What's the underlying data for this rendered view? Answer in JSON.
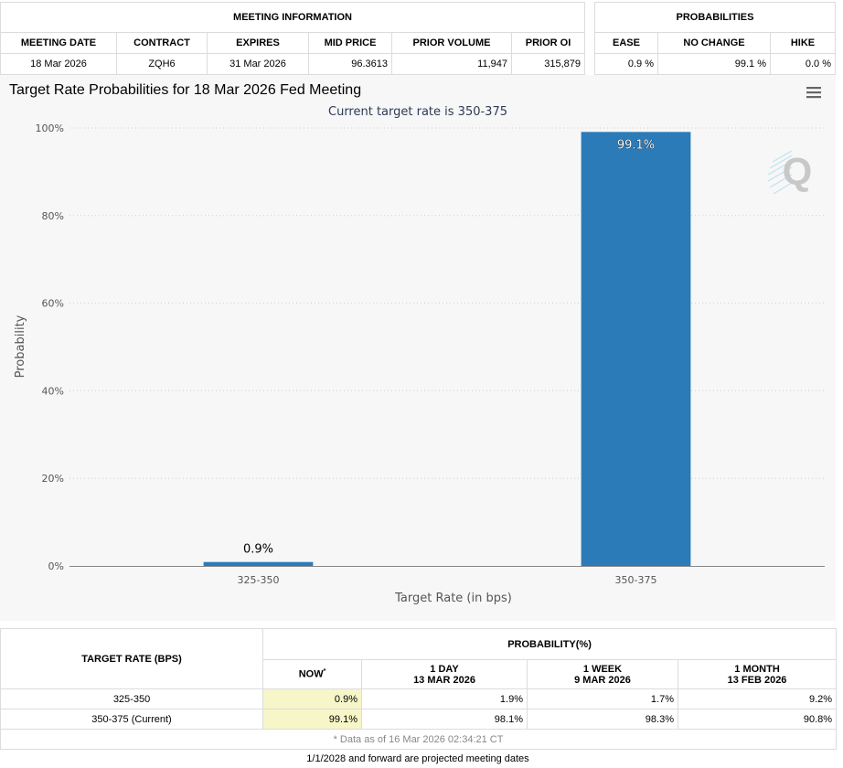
{
  "meeting_info": {
    "title": "MEETING INFORMATION",
    "columns": [
      "MEETING DATE",
      "CONTRACT",
      "EXPIRES",
      "MID PRICE",
      "PRIOR VOLUME",
      "PRIOR OI"
    ],
    "row": [
      "18 Mar 2026",
      "ZQH6",
      "31 Mar 2026",
      "96.3613",
      "11,947",
      "315,879"
    ]
  },
  "probabilities": {
    "title": "PROBABILITIES",
    "columns": [
      "EASE",
      "NO CHANGE",
      "HIKE"
    ],
    "row": [
      "0.9 %",
      "99.1 %",
      "0.0 %"
    ]
  },
  "chart_data": {
    "type": "bar",
    "title": "Target Rate Probabilities for 18 Mar 2026 Fed Meeting",
    "subtitle": "Current target rate is 350-375",
    "xlabel": "Target Rate (in bps)",
    "ylabel": "Probability",
    "categories": [
      "325-350",
      "350-375"
    ],
    "values": [
      0.9,
      99.1
    ],
    "data_labels": [
      "0.9%",
      "99.1%"
    ],
    "yticks": [
      "0%",
      "20%",
      "40%",
      "60%",
      "80%",
      "100%"
    ],
    "ylim": [
      0,
      100
    ],
    "grid": true,
    "bar_color": "#2b7bb9",
    "menu_icon": "hamburger-menu-icon",
    "logo_letter": "Q"
  },
  "history": {
    "row_header": "TARGET RATE (BPS)",
    "group_header": "PROBABILITY(%)",
    "columns": [
      {
        "label": "NOW",
        "sup": "*",
        "date": ""
      },
      {
        "label": "1 DAY",
        "date": "13 MAR 2026"
      },
      {
        "label": "1 WEEK",
        "date": "9 MAR 2026"
      },
      {
        "label": "1 MONTH",
        "date": "13 FEB 2026"
      }
    ],
    "rows": [
      {
        "rate": "325-350",
        "values": [
          "0.9%",
          "1.9%",
          "1.7%",
          "9.2%"
        ]
      },
      {
        "rate": "350-375 (Current)",
        "values": [
          "99.1%",
          "98.1%",
          "98.3%",
          "90.8%"
        ]
      }
    ],
    "note": "* Data as of 16 Mar 2026 02:34:21 CT"
  },
  "footer_note": "1/1/2028 and forward are projected meeting dates"
}
